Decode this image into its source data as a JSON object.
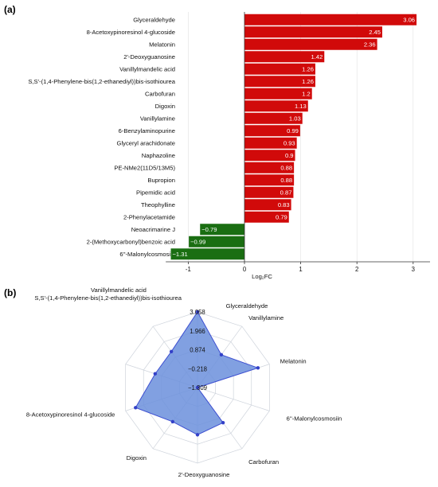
{
  "panels": {
    "a_label": "(a)",
    "b_label": "(b)"
  },
  "chart_data": [
    {
      "type": "bar",
      "orientation": "horizontal",
      "xlabel": "Log₂FC",
      "xlim": [
        -1.4,
        3.3
      ],
      "xticks": [
        "-1",
        "0",
        "1",
        "2",
        "3"
      ],
      "xtick_values": [
        -1,
        0,
        1,
        2,
        3
      ],
      "categories": [
        "Glyceraldehyde",
        "8-Acetoxypinoresinol 4-glucoside",
        "Melatonin",
        "2'-Deoxyguanosine",
        "Vanillylmandelic acid",
        "S,S'-(1,4-Phenylene-bis(1,2-ethanediyl))bis-isothiourea",
        "Carbofuran",
        "Digoxin",
        "Vanillylamine",
        "6-Benzylaminopurine",
        "Glyceryl arachidonate",
        "Naphazoline",
        "PE-NMe2(11D5/13M5)",
        "Bupropion",
        "Pipemidic acid",
        "Theophylline",
        "2-Phenylacetamide",
        "Neoacrimarine J",
        "2-(Methoxycarbonyl)benzoic acid",
        "6''-Malonylcosmosiin"
      ],
      "values": [
        3.06,
        2.45,
        2.36,
        1.42,
        1.26,
        1.26,
        1.2,
        1.13,
        1.03,
        0.99,
        0.93,
        0.9,
        0.88,
        0.88,
        0.87,
        0.83,
        0.79,
        -0.79,
        -0.99,
        -1.31
      ],
      "value_labels": [
        "3.06",
        "2.45",
        "2.36",
        "1.42",
        "1.26",
        "1.26",
        "1.2",
        "1.13",
        "1.03",
        "0.99",
        "0.93",
        "0.9",
        "0.88",
        "0.88",
        "0.87",
        "0.83",
        "0.79",
        "−0.79",
        "−0.99",
        "−1.31"
      ],
      "colors": {
        "positive": "#d10a0a",
        "negative": "#1a6e12"
      }
    },
    {
      "type": "radar",
      "axes": [
        "Glyceraldehyde",
        "Vanillylamine",
        "Melatonin",
        "6''-Malonylcosmosiin",
        "Carbofuran",
        "2'-Deoxyguanosine",
        "Digoxin",
        "8-Acetoxypinoresinol 4-glucoside",
        "S,S'-(1,4-Phenylene-bis(1,2-ethanediyl))bis-isothiourea",
        "Vanillylmandelic acid"
      ],
      "values": [
        3.06,
        1.03,
        2.36,
        -1.31,
        1.2,
        1.42,
        1.13,
        2.45,
        1.26,
        1.26
      ],
      "range": [
        -1.309,
        3.058
      ],
      "ticks": [
        "−1.309",
        "−0.218",
        "0.874",
        "1.966",
        "3.058"
      ],
      "tick_values": [
        -1.309,
        -0.218,
        0.874,
        1.966,
        3.058
      ],
      "colors": {
        "fill": "#6b8fdc",
        "stroke": "#3d4fd1",
        "point": "#3340c8",
        "grid": "#cfd4dc"
      }
    }
  ]
}
